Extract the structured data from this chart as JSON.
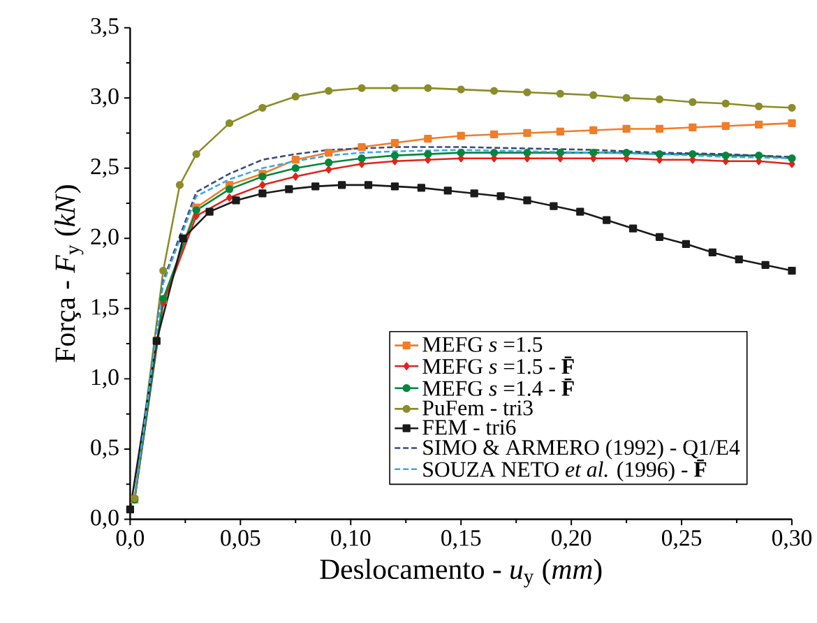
{
  "chart_data": {
    "type": "line",
    "xlabel": "Deslocamento - *u*$_{y}$ (*mm*)",
    "ylabel": "Força - *F*$_{y}$ (*kN*)",
    "xlim": [
      0,
      0.3
    ],
    "ylim": [
      0,
      3.5
    ],
    "xticks": [
      {
        "value": 0,
        "label": "0,0"
      },
      {
        "value": 0.05,
        "label": "0,05"
      },
      {
        "value": 0.1,
        "label": "0,10"
      },
      {
        "value": 0.15,
        "label": "0,15"
      },
      {
        "value": 0.2,
        "label": "0,20"
      },
      {
        "value": 0.25,
        "label": "0,25"
      },
      {
        "value": 0.3,
        "label": "0,30"
      }
    ],
    "yticks": [
      {
        "value": 0,
        "label": "0,0"
      },
      {
        "value": 0.5,
        "label": "0,5"
      },
      {
        "value": 1.0,
        "label": "1,0"
      },
      {
        "value": 1.5,
        "label": "1,5"
      },
      {
        "value": 2.0,
        "label": "2,0"
      },
      {
        "value": 2.5,
        "label": "2,5"
      },
      {
        "value": 3.0,
        "label": "3,0"
      },
      {
        "value": 3.5,
        "label": "3,5"
      }
    ],
    "grid": false,
    "legend": "bottom right",
    "series": [
      {
        "name": "MEFG *s* =1.5",
        "color": "#f07d2a",
        "marker": "square",
        "line_style": "solid",
        "x": [
          0.002,
          0.015,
          0.03,
          0.045,
          0.06,
          0.075,
          0.09,
          0.105,
          0.12,
          0.135,
          0.15,
          0.165,
          0.18,
          0.195,
          0.21,
          0.225,
          0.24,
          0.255,
          0.27,
          0.285,
          0.3
        ],
        "values": [
          0.14,
          1.56,
          2.22,
          2.38,
          2.46,
          2.56,
          2.61,
          2.65,
          2.68,
          2.71,
          2.73,
          2.74,
          2.75,
          2.76,
          2.77,
          2.78,
          2.78,
          2.79,
          2.8,
          2.81,
          2.82
        ]
      },
      {
        "name": "MEFG *s* =1.5 - **F̄**",
        "color": "#e2231a",
        "marker": "diamond",
        "line_style": "solid",
        "x": [
          0.002,
          0.015,
          0.03,
          0.045,
          0.06,
          0.075,
          0.09,
          0.105,
          0.12,
          0.135,
          0.15,
          0.165,
          0.18,
          0.195,
          0.21,
          0.225,
          0.24,
          0.255,
          0.27,
          0.285,
          0.3
        ],
        "values": [
          0.14,
          1.54,
          2.16,
          2.29,
          2.38,
          2.44,
          2.49,
          2.53,
          2.55,
          2.56,
          2.57,
          2.57,
          2.57,
          2.57,
          2.57,
          2.57,
          2.56,
          2.56,
          2.55,
          2.55,
          2.53
        ]
      },
      {
        "name": "MEFG *s* =1.4 - **F̄**",
        "color": "#00873e",
        "marker": "circle",
        "line_style": "solid",
        "x": [
          0.002,
          0.015,
          0.03,
          0.045,
          0.06,
          0.075,
          0.09,
          0.105,
          0.12,
          0.135,
          0.15,
          0.165,
          0.18,
          0.195,
          0.21,
          0.225,
          0.24,
          0.255,
          0.27,
          0.285,
          0.3
        ],
        "values": [
          0.14,
          1.57,
          2.2,
          2.35,
          2.44,
          2.5,
          2.54,
          2.57,
          2.59,
          2.6,
          2.61,
          2.61,
          2.61,
          2.61,
          2.61,
          2.61,
          2.6,
          2.6,
          2.59,
          2.59,
          2.57
        ]
      },
      {
        "name": "PuFem - tri3",
        "color": "#8c8c2a",
        "marker": "circle",
        "line_style": "solid",
        "x": [
          0.002,
          0.015,
          0.0225,
          0.03,
          0.045,
          0.06,
          0.075,
          0.09,
          0.105,
          0.12,
          0.135,
          0.15,
          0.165,
          0.18,
          0.195,
          0.21,
          0.225,
          0.24,
          0.255,
          0.27,
          0.285,
          0.3
        ],
        "values": [
          0.15,
          1.77,
          2.38,
          2.6,
          2.82,
          2.93,
          3.01,
          3.05,
          3.07,
          3.07,
          3.07,
          3.06,
          3.05,
          3.04,
          3.03,
          3.02,
          3.0,
          2.99,
          2.97,
          2.96,
          2.94,
          2.93
        ]
      },
      {
        "name": "FEM - tri6",
        "color": "#1a1a1a",
        "marker": "square",
        "line_style": "solid",
        "x": [
          0.0,
          0.012,
          0.024,
          0.036,
          0.048,
          0.06,
          0.072,
          0.084,
          0.096,
          0.108,
          0.12,
          0.132,
          0.144,
          0.156,
          0.168,
          0.18,
          0.192,
          0.204,
          0.216,
          0.228,
          0.24,
          0.252,
          0.264,
          0.276,
          0.288,
          0.3
        ],
        "values": [
          0.07,
          1.27,
          2.0,
          2.19,
          2.27,
          2.32,
          2.35,
          2.37,
          2.38,
          2.38,
          2.37,
          2.36,
          2.34,
          2.32,
          2.3,
          2.27,
          2.23,
          2.19,
          2.13,
          2.07,
          2.01,
          1.96,
          1.9,
          1.85,
          1.81,
          1.77
        ]
      },
      {
        "name": "SIMO & ARMERO (1992) - Q1/E4",
        "color": "#3b4a7a",
        "marker": "none",
        "line_style": "dashed",
        "x": [
          0.002,
          0.015,
          0.03,
          0.045,
          0.06,
          0.075,
          0.09,
          0.105,
          0.12,
          0.15,
          0.18,
          0.21,
          0.24,
          0.27,
          0.3
        ],
        "values": [
          0.15,
          1.7,
          2.33,
          2.46,
          2.56,
          2.6,
          2.63,
          2.64,
          2.65,
          2.65,
          2.64,
          2.63,
          2.61,
          2.6,
          2.58
        ]
      },
      {
        "name": "SOUZA NETO *et al.* (1996) - **F̄**",
        "color": "#3aa8e8",
        "marker": "none",
        "line_style": "dashed",
        "x": [
          0.002,
          0.015,
          0.03,
          0.045,
          0.06,
          0.075,
          0.09,
          0.105,
          0.12,
          0.15,
          0.18,
          0.21,
          0.24,
          0.27,
          0.3
        ],
        "values": [
          0.15,
          1.68,
          2.3,
          2.42,
          2.5,
          2.55,
          2.59,
          2.61,
          2.62,
          2.63,
          2.62,
          2.61,
          2.6,
          2.58,
          2.57
        ]
      }
    ]
  }
}
